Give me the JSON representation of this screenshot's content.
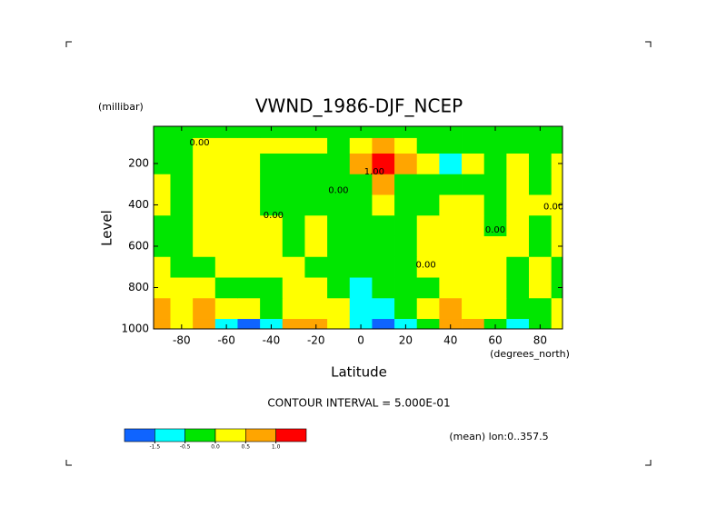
{
  "chart_data": {
    "type": "contour",
    "title": "VWND_1986-DJF_NCEP",
    "y_units": "(millibar)",
    "ylabel": "Level",
    "xlabel": "Latitude",
    "x_units": "(degrees_north)",
    "note": "CONTOUR INTERVAL = 5.000E-01",
    "footer": "(mean) lon:0..357.5",
    "x": [
      -90,
      -80,
      -70,
      -60,
      -50,
      -40,
      -30,
      -20,
      -10,
      0,
      10,
      20,
      30,
      40,
      50,
      60,
      70,
      80,
      90
    ],
    "y": [
      1000,
      900,
      800,
      700,
      600,
      500,
      400,
      300,
      200,
      100,
      50
    ],
    "z": [
      [
        0.75,
        0.25,
        0.75,
        -1,
        -2,
        -1,
        0.75,
        0.75,
        0.25,
        -1,
        -2,
        -1,
        -0.25,
        0.75,
        0.75,
        -0.25,
        -1,
        -0.25,
        0.25
      ],
      [
        0.75,
        0.25,
        0.75,
        0.25,
        0.25,
        -0.25,
        0.25,
        0.25,
        0.25,
        -1,
        -1,
        -0.25,
        0.25,
        0.75,
        0.25,
        0.25,
        -0.25,
        -0.25,
        0.25
      ],
      [
        0.25,
        0.25,
        0.25,
        -0.25,
        -0.25,
        -0.25,
        0.25,
        0.25,
        -0.25,
        -1,
        -0.25,
        -0.25,
        -0.25,
        0.25,
        0.25,
        0.25,
        -0.25,
        0.25,
        -0.25
      ],
      [
        0.25,
        -0.25,
        -0.25,
        0.25,
        0.25,
        0.25,
        0.25,
        -0.25,
        -0.25,
        -0.25,
        -0.25,
        -0.25,
        0.25,
        0.25,
        0.25,
        0.25,
        -0.25,
        0.25,
        -0.25
      ],
      [
        -0.25,
        -0.25,
        0.25,
        0.25,
        0.25,
        0.25,
        -0.25,
        0.25,
        -0.25,
        -0.25,
        -0.25,
        -0.25,
        0.25,
        0.25,
        0.25,
        0.25,
        0.25,
        -0.25,
        0.25
      ],
      [
        -0.25,
        -0.25,
        0.25,
        0.25,
        0.25,
        0.25,
        -0.25,
        0.25,
        -0.25,
        -0.25,
        -0.25,
        -0.25,
        0.25,
        0.25,
        0.25,
        -0.25,
        0.25,
        -0.25,
        0.25
      ],
      [
        0.25,
        -0.25,
        0.25,
        0.25,
        0.25,
        -0.25,
        -0.25,
        -0.25,
        -0.25,
        -0.25,
        0.25,
        -0.25,
        -0.25,
        0.25,
        0.25,
        -0.25,
        0.25,
        0.25,
        0.25
      ],
      [
        0.25,
        -0.25,
        0.25,
        0.25,
        0.25,
        -0.25,
        -0.25,
        -0.25,
        -0.25,
        -0.25,
        0.75,
        -0.25,
        -0.25,
        -0.25,
        -0.25,
        -0.25,
        0.25,
        -0.25,
        0.25
      ],
      [
        -0.25,
        -0.25,
        0.25,
        0.25,
        0.25,
        -0.25,
        -0.25,
        -0.25,
        -0.25,
        0.75,
        1.5,
        0.75,
        0.25,
        -1,
        0.25,
        -0.25,
        0.25,
        -0.25,
        0.25
      ],
      [
        -0.25,
        -0.25,
        0.25,
        0.25,
        0.25,
        0.25,
        0.25,
        0.25,
        -0.25,
        0.25,
        0.75,
        0.25,
        -0.25,
        -0.25,
        -0.25,
        -0.25,
        -0.25,
        -0.25,
        -0.25
      ],
      [
        -0.25,
        -0.25,
        -0.25,
        -0.25,
        -0.25,
        -0.25,
        -0.25,
        -0.25,
        -0.25,
        -0.25,
        -0.25,
        -0.25,
        -0.25,
        -0.25,
        -0.25,
        -0.25,
        -0.25,
        -0.25,
        -0.25
      ]
    ],
    "xlim": [
      -92.5,
      90
    ],
    "ylim": [
      1000,
      20
    ],
    "xticks": [
      -80,
      -60,
      -40,
      -20,
      0,
      20,
      40,
      60,
      80
    ],
    "yticks": [
      200,
      400,
      600,
      800,
      1000
    ],
    "levels": [
      -1.5,
      -0.5,
      {
        "value": 0,
        "label": "0.0"
      },
      0.5,
      {
        "value": 1,
        "label": "1.0"
      }
    ],
    "colors": [
      "#0f64ff",
      "#00ffff",
      "#00e600",
      "#ffff00",
      "#ffa500",
      "#ff0000"
    ],
    "annotations": [
      {
        "text": "0.00",
        "x": -72,
        "y": 100
      },
      {
        "text": "0.00",
        "x": -39,
        "y": 450
      },
      {
        "text": "0.00",
        "x": -10,
        "y": 330
      },
      {
        "text": "1.00",
        "x": 6,
        "y": 240
      },
      {
        "text": "0.00",
        "x": 29,
        "y": 690
      },
      {
        "text": "0.00",
        "x": 60,
        "y": 520
      },
      {
        "text": "0.00",
        "x": 86,
        "y": 410
      }
    ]
  }
}
